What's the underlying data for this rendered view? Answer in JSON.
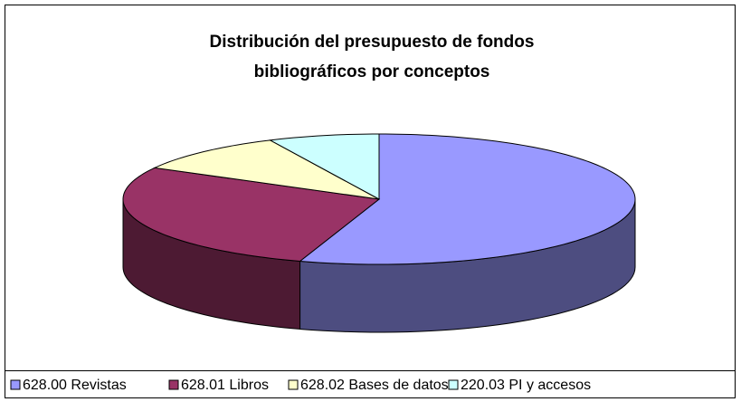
{
  "chart_data": {
    "type": "pie3d",
    "title": [
      "Distribución del presupuesto de fondos",
      "bibliográficos  por conceptos"
    ],
    "categories": [
      "628.00 Revistas",
      "628.01 Libros",
      "628.02 Bases de datos",
      "220.03 PI y accesos"
    ],
    "values": [
      55,
      28,
      10,
      7
    ],
    "colors": [
      "#9999ff",
      "#993366",
      "#ffffcc",
      "#ccffff"
    ],
    "side_colors": [
      "#4d4d80",
      "#4d1a33",
      "#80806a",
      "#6a8080"
    ],
    "legend": "bottom"
  }
}
